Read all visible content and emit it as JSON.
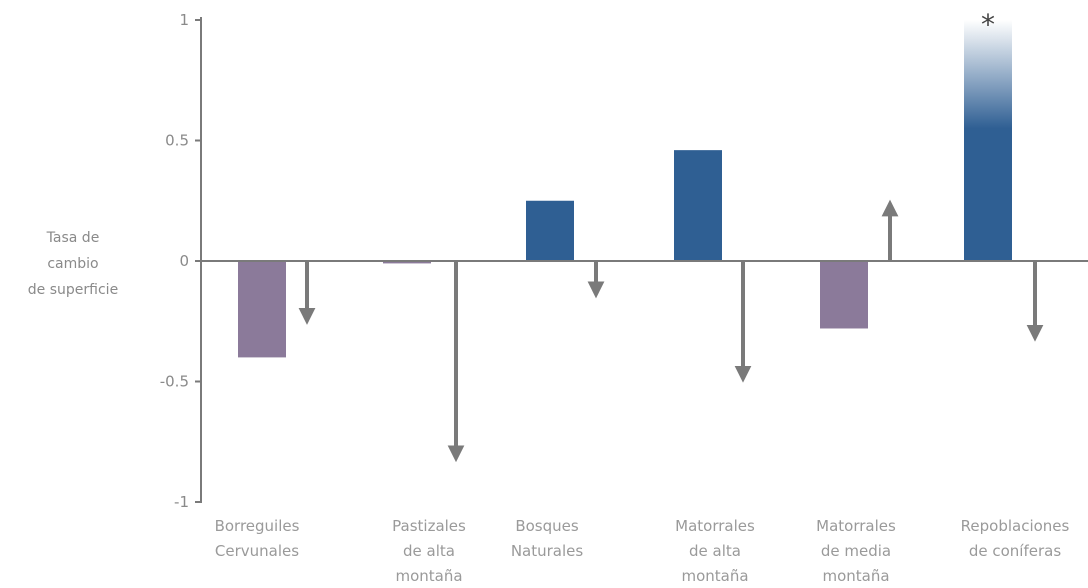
{
  "chart_data": {
    "type": "bar",
    "ylabel": [
      "Tasa de",
      "cambio",
      "de superficie"
    ],
    "ylim": [
      -1,
      1
    ],
    "yticks": [
      "1",
      "0.5",
      "0",
      "-0.5",
      "-1"
    ],
    "ytick_values": [
      1,
      0.5,
      0,
      -0.5,
      -1
    ],
    "categories": [
      [
        "Borreguiles",
        "Cervunales"
      ],
      [
        "Pastizales",
        "de alta",
        "montaña"
      ],
      [
        "Bosques",
        "Naturales"
      ],
      [
        "Matorrales",
        "de alta",
        "montaña"
      ],
      [
        "Matorrales",
        "de media",
        "montaña"
      ],
      [
        "Repoblaciones",
        "de coníferas"
      ]
    ],
    "values": [
      -0.4,
      -0.01,
      0.25,
      0.46,
      -0.28,
      1.0
    ],
    "bar_colors": [
      "#8b7a9a",
      "#8b7a9a",
      "#2f5f93",
      "#2f5f93",
      "#8b7a9a",
      "#2f5f93"
    ],
    "arrows": [
      -0.23,
      -0.8,
      -0.12,
      -0.47,
      0.22,
      -0.3
    ],
    "arrow_color": "#7a7a7a",
    "annotation": "*",
    "annotation_category_index": 5,
    "faded_top_category_index": 5,
    "grid": false
  }
}
